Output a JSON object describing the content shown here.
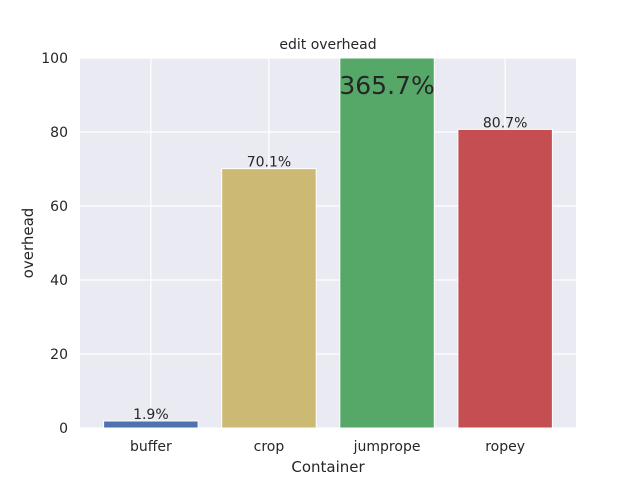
{
  "chart_data": {
    "type": "bar",
    "title": "edit overhead",
    "xlabel": "Container",
    "ylabel": "overhead",
    "ylim": [
      0,
      100
    ],
    "yticks": [
      0,
      20,
      40,
      60,
      80,
      100
    ],
    "ytick_labels": [
      "0",
      "20",
      "40",
      "60",
      "80",
      "100"
    ],
    "grid": true,
    "categories": [
      "buffer",
      "crop",
      "jumprope",
      "ropey"
    ],
    "values": [
      1.9,
      70.1,
      365.7,
      80.7
    ],
    "data_labels": [
      "1.9%",
      "70.1%",
      "365.7%",
      "80.7%"
    ],
    "clipped_value_label": "365.7%",
    "colors": [
      "#4c72b0",
      "#ccb974",
      "#55a868",
      "#c44e52"
    ],
    "background_color": "#eaeaf2",
    "grid_color": "#ffffff"
  }
}
